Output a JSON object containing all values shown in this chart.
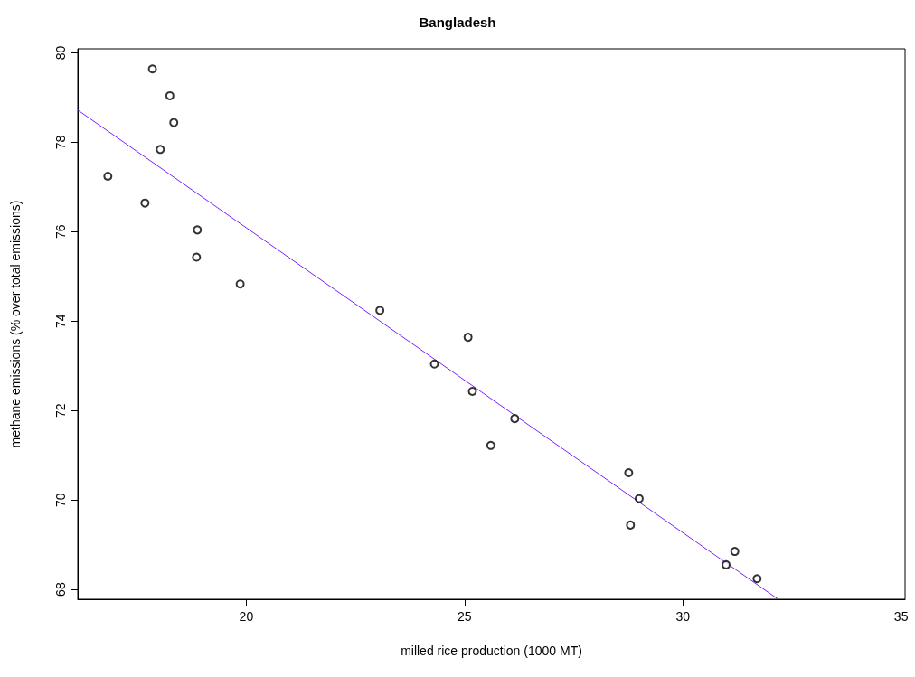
{
  "chart_data": {
    "type": "scatter",
    "title": "Bangladesh",
    "xlabel": "milled rice production (1000 MT)",
    "ylabel": "methane emissions (% over total emissions)",
    "xlim": [
      16.14,
      35.09
    ],
    "xticks": [
      20,
      25,
      30,
      35
    ],
    "ylim": [
      67.78,
      80.09
    ],
    "yticks": [
      68,
      70,
      72,
      74,
      76,
      78,
      80
    ],
    "grid": false,
    "marker": "circle",
    "series": [
      {
        "color": "#000000",
        "x": [
          17.85,
          18.25,
          18.34,
          18.03,
          16.83,
          17.68,
          18.88,
          18.86,
          19.86,
          23.06,
          25.08,
          24.31,
          25.18,
          26.15,
          25.6,
          28.76,
          29.0,
          28.8,
          31.19,
          30.99,
          31.7
        ],
        "values": [
          79.64,
          79.04,
          78.44,
          77.84,
          77.24,
          76.64,
          76.04,
          75.43,
          74.83,
          74.24,
          73.64,
          73.04,
          72.43,
          71.82,
          71.22,
          70.61,
          70.03,
          69.44,
          68.85,
          68.55,
          68.24
        ]
      },
      {
        "type": "line",
        "color": "#7b1fff",
        "marker": "none",
        "line_style": "solid",
        "x": [
          16.14,
          32.17
        ],
        "values": [
          78.72,
          67.79
        ]
      }
    ]
  }
}
